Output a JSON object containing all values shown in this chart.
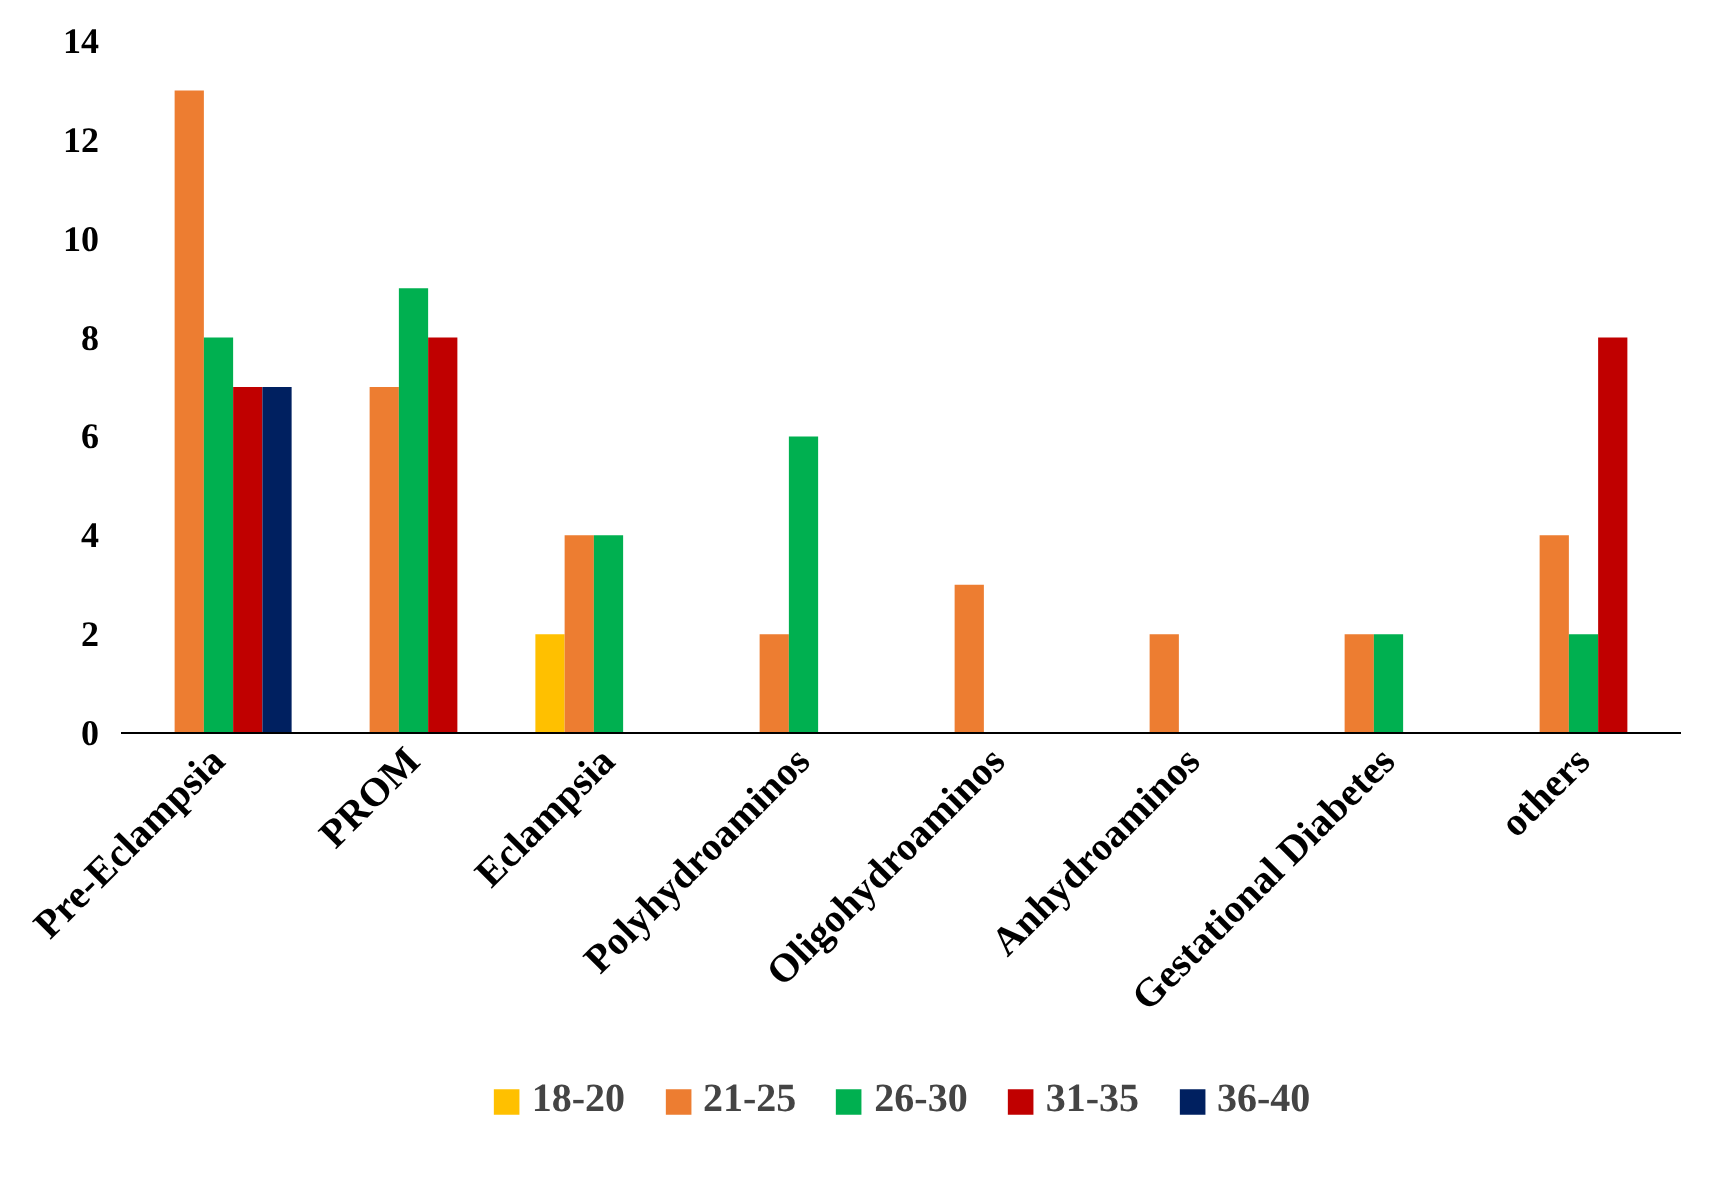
{
  "chart_data": {
    "type": "bar",
    "categories": [
      "Pre-Eclampsia",
      "PROM",
      "Eclampsia",
      "Polyhydroaminos",
      "Oligohydroaminos",
      "Anhydroaminos",
      "Gestational Diabetes",
      "others"
    ],
    "series": [
      {
        "name": "18-20",
        "color": "#ffc000",
        "values": [
          0,
          0,
          2,
          0,
          0,
          0,
          0,
          0
        ]
      },
      {
        "name": "21-25",
        "color": "#ed7d31",
        "values": [
          13,
          7,
          4,
          2,
          3,
          2,
          2,
          4
        ]
      },
      {
        "name": "26-30",
        "color": "#00b050",
        "values": [
          8,
          9,
          4,
          6,
          0,
          0,
          2,
          2
        ]
      },
      {
        "name": "31-35",
        "color": "#c00000",
        "values": [
          7,
          8,
          0,
          0,
          0,
          0,
          0,
          8
        ]
      },
      {
        "name": "36-40",
        "color": "#002060",
        "values": [
          7,
          0,
          0,
          0,
          0,
          0,
          0,
          0
        ]
      }
    ],
    "ylim": [
      0,
      14
    ],
    "yticks": [
      0,
      2,
      4,
      6,
      8,
      10,
      12,
      14
    ],
    "grid": false,
    "legend": "bottom"
  }
}
